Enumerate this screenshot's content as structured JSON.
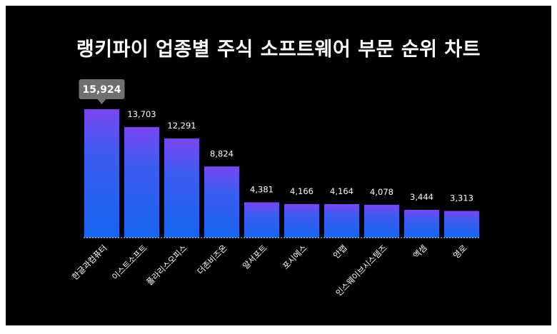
{
  "chart_data": {
    "type": "bar",
    "title": "랭키파이 업종별 주식 소프트웨어 부문 순위 차트",
    "categories": [
      "한글과컴퓨터",
      "이스트소프트",
      "폴라리스오피스",
      "더존비즈온",
      "알서포트",
      "포시에스",
      "안랩",
      "인스웨이브시스템즈",
      "엑셈",
      "영로"
    ],
    "values": [
      15924,
      13703,
      12291,
      8824,
      4381,
      4166,
      4164,
      4078,
      3444,
      3313
    ],
    "value_labels": [
      "15,924",
      "13,703",
      "12,291",
      "8,824",
      "4,381",
      "4,166",
      "4,164",
      "4,078",
      "3,444",
      "3,313"
    ],
    "highlight_index": 0,
    "ylim": [
      0,
      16000
    ],
    "grid": false,
    "legend": "none",
    "colors": {
      "background": "#000000",
      "bar_top": "#7b45f0",
      "bar_bottom": "#1566f0",
      "highlight_box": "#707070",
      "text": "#ffffff",
      "baseline": "#ffffff"
    }
  }
}
